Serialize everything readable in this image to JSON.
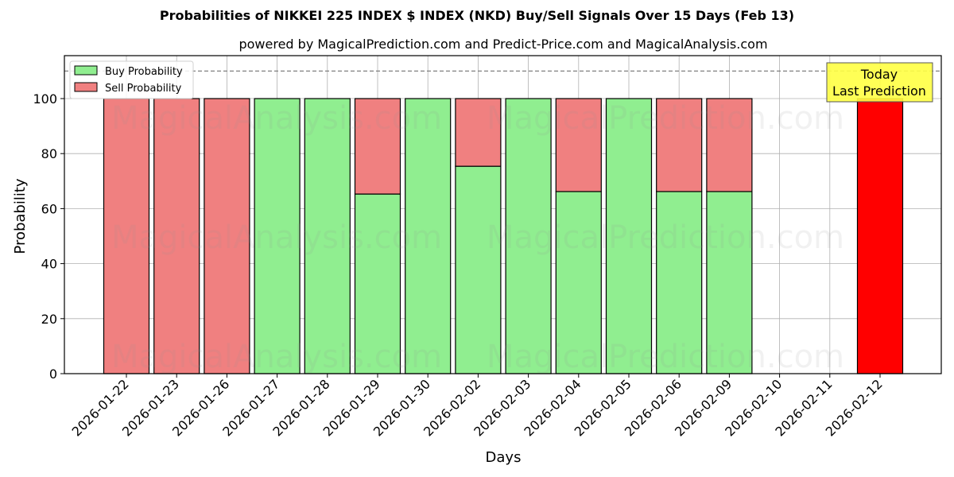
{
  "chart_data": {
    "type": "bar",
    "stacked": true,
    "title": "Probabilities of NIKKEI 225 INDEX $ INDEX (NKD) Buy/Sell Signals Over 15 Days (Feb 13)",
    "subtitle": "powered by MagicalPrediction.com and Predict-Price.com and MagicalAnalysis.com",
    "xlabel": "Days",
    "ylabel": "Probability",
    "ylim": [
      0,
      115
    ],
    "yticks": [
      0,
      20,
      40,
      60,
      80,
      100
    ],
    "grid": true,
    "legend_position": "upper left",
    "reference_line": {
      "y": 110,
      "style": "dashed"
    },
    "categories": [
      "2026-01-22",
      "2026-01-23",
      "2026-01-26",
      "2026-01-27",
      "2026-01-28",
      "2026-01-29",
      "2026-01-30",
      "2026-02-02",
      "2026-02-03",
      "2026-02-04",
      "2026-02-05",
      "2026-02-06",
      "2026-02-09",
      "2026-02-10",
      "2026-02-11",
      "2026-02-12"
    ],
    "series": [
      {
        "name": "Buy Probability",
        "color": "#90ee90",
        "values": [
          0,
          0,
          0,
          100,
          100,
          65.3,
          100,
          75.4,
          100,
          66.2,
          100,
          66.2,
          66.2,
          null,
          null,
          0
        ]
      },
      {
        "name": "Sell Probability",
        "color": "#f08080",
        "values": [
          100,
          100,
          100,
          0,
          0,
          34.7,
          0,
          24.6,
          0,
          33.8,
          0,
          33.8,
          33.8,
          null,
          null,
          100
        ]
      }
    ],
    "highlight": {
      "category": "2026-02-12",
      "color": "#ff0000",
      "annotation": [
        "Today",
        "Last Prediction"
      ]
    },
    "watermarks": [
      "MagicalAnalysis.com",
      "MagicalPrediction.com"
    ]
  }
}
